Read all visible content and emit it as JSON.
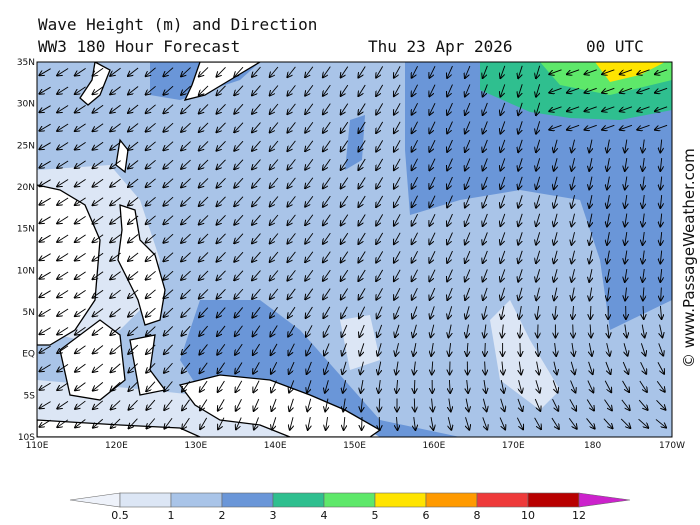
{
  "header": {
    "title": "Wave Height (m) and Direction",
    "subtitle": "WW3 180 Hour Forecast",
    "date": "Thu 23 Apr 2026",
    "time": "00 UTC"
  },
  "map": {
    "lat_labels": [
      "35N",
      "30N",
      "25N",
      "20N",
      "15N",
      "10N",
      "5N",
      "EQ",
      "5S",
      "10S"
    ],
    "lon_labels": [
      "110E",
      "120E",
      "130E",
      "140E",
      "150E",
      "160E",
      "170E",
      "180",
      "170W"
    ]
  },
  "colorbar": {
    "ticks": [
      0.5,
      1,
      2,
      3,
      4,
      5,
      6,
      8,
      10,
      12
    ],
    "colors": [
      "#eef2fa",
      "#dce6f5",
      "#a9c4e8",
      "#6a96d8",
      "#2fbf8f",
      "#5ee86a",
      "#ffe400",
      "#ff9a00",
      "#ee3a3a",
      "#b80000",
      "#cc22cc"
    ]
  },
  "watermark": "© www.PassageWeather.com"
}
